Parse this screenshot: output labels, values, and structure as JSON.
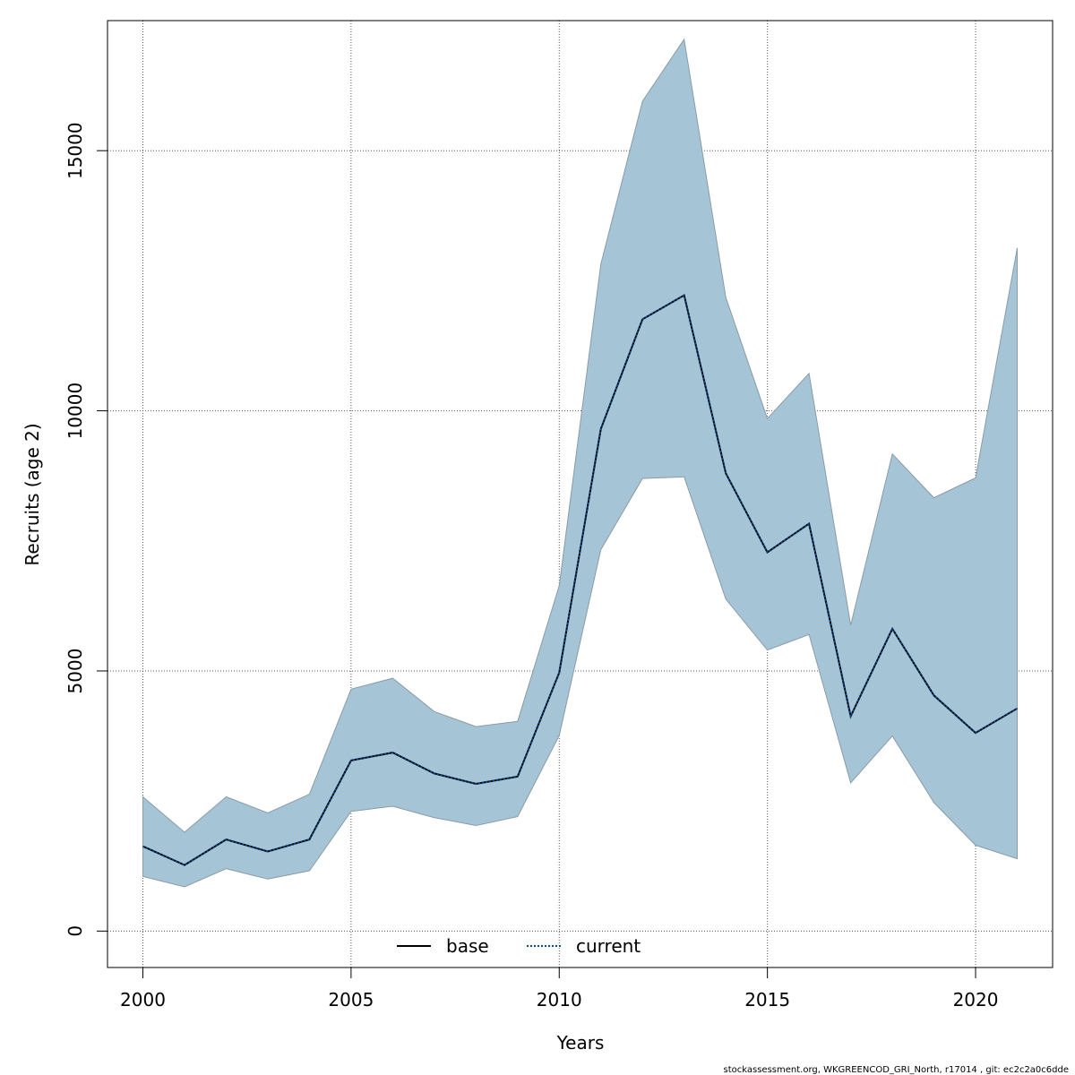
{
  "chart_data": {
    "type": "line",
    "xlabel": "Years",
    "ylabel": "Recruits (age 2)",
    "xlim": [
      1999.15,
      2021.85
    ],
    "ylim": [
      -700,
      17500
    ],
    "x_ticks": [
      2000,
      2005,
      2010,
      2015,
      2020
    ],
    "y_ticks": [
      0,
      5000,
      10000,
      15000
    ],
    "grid": true,
    "legend_position": "bottom-center",
    "x": [
      2000,
      2001,
      2002,
      2003,
      2004,
      2005,
      2006,
      2007,
      2008,
      2009,
      2010,
      2011,
      2012,
      2013,
      2014,
      2015,
      2016,
      2017,
      2018,
      2019,
      2020,
      2021
    ],
    "band": {
      "lower": [
        1050,
        850,
        1200,
        1000,
        1160,
        2300,
        2400,
        2180,
        2030,
        2200,
        3760,
        7330,
        8700,
        8730,
        6380,
        5400,
        5700,
        2850,
        3750,
        2470,
        1650,
        1390
      ],
      "upper": [
        2580,
        1900,
        2580,
        2270,
        2630,
        4650,
        4860,
        4220,
        3930,
        4030,
        6640,
        12820,
        15950,
        17140,
        12180,
        9850,
        10720,
        5880,
        9170,
        8330,
        8710,
        13130
      ],
      "fill_color": "#a5c4d6",
      "stroke_color": "#8a9ca6"
    },
    "series": [
      {
        "name": "base",
        "line_style": "solid",
        "color": "#000000",
        "values": [
          1630,
          1270,
          1760,
          1530,
          1760,
          3280,
          3430,
          3030,
          2830,
          2970,
          4970,
          9650,
          11760,
          12220,
          8800,
          7280,
          7830,
          4130,
          5810,
          4530,
          3810,
          4280
        ]
      },
      {
        "name": "current",
        "line_style": "dotted",
        "color": "#0a4a8a",
        "values": [
          1630,
          1270,
          1760,
          1530,
          1760,
          3280,
          3430,
          3030,
          2830,
          2970,
          4970,
          9650,
          11760,
          12220,
          8800,
          7280,
          7830,
          4130,
          5810,
          4530,
          3810,
          4280
        ]
      }
    ]
  },
  "footer": "stockassessment.org, WKGREENCOD_GRI_North, r17014 , git: ec2c2a0c6dde"
}
